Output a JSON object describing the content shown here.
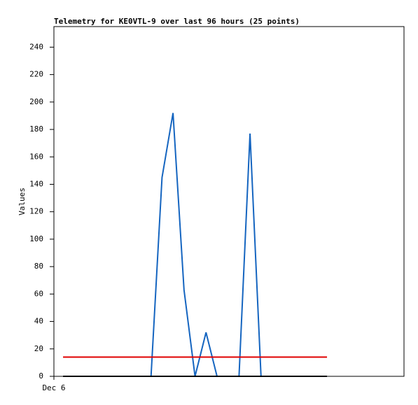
{
  "chart_data": {
    "type": "line",
    "title": "Telemetry for KE0VTL-9 over last 96 hours (25 points)",
    "y_label": "Values",
    "categories": [
      null,
      null,
      null,
      null,
      null,
      null,
      null,
      null,
      null,
      null,
      null,
      null,
      null,
      null,
      null,
      null,
      null,
      null,
      null,
      null,
      null,
      null,
      null,
      null,
      null
    ],
    "xlim": [
      -0.83,
      31
    ],
    "xticks": [
      {
        "value": -0.83,
        "label": "Dec 6"
      }
    ],
    "ylim": [
      0,
      255
    ],
    "yticks": [
      0,
      20,
      40,
      60,
      80,
      100,
      120,
      140,
      160,
      180,
      200,
      220,
      240
    ],
    "grid": false,
    "series": [
      {
        "color": "#1565c0",
        "values": [
          0,
          0,
          0,
          0,
          0,
          0,
          0,
          0,
          0,
          145,
          192,
          63,
          0,
          32,
          0,
          0,
          0,
          177,
          0,
          0,
          0,
          0,
          0,
          0,
          0
        ]
      },
      {
        "color": "#e00000",
        "values": [
          14,
          14,
          14,
          14,
          14,
          14,
          14,
          14,
          14,
          14,
          14,
          14,
          14,
          14,
          14,
          14,
          14,
          14,
          14,
          14,
          14,
          14,
          14,
          14,
          14
        ]
      },
      {
        "color": "#000000",
        "values": [
          0,
          0,
          0,
          0,
          0,
          0,
          0,
          0,
          0,
          0,
          0,
          0,
          0,
          0,
          0,
          0,
          0,
          0,
          0,
          0,
          0,
          0,
          0,
          0,
          0
        ]
      }
    ]
  }
}
